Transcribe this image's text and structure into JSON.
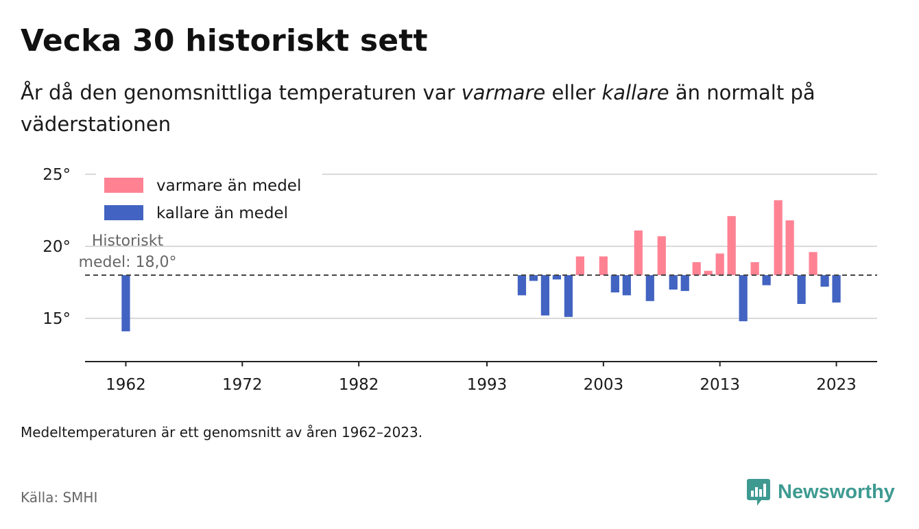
{
  "header": {
    "title": "Vecka 30 historiskt sett",
    "subtitle_pre": "År då den genomsnittliga temperaturen var ",
    "subtitle_warm": "varmare",
    "subtitle_mid": " eller ",
    "subtitle_cold": "kallare",
    "subtitle_post": " än normalt på väderstationen"
  },
  "footer": {
    "note": "Medeltemperaturen är ett genomsnitt av åren 1962–2023.",
    "source": "Källa: SMHI",
    "brand": "Newsworthy",
    "brand_icon": "newsworthy-logo-icon"
  },
  "colors": {
    "warm": "#ff8293",
    "cold": "#4263c1",
    "grid": "#d9d9d9",
    "axis": "#222222",
    "mean_line": "#444444",
    "brand": "#3e9a91"
  },
  "chart_data": {
    "type": "bar",
    "baseline": 18.0,
    "baseline_label": [
      "Historiskt",
      "medel: 18,0°"
    ],
    "ylim": [
      12,
      26
    ],
    "yticks": [
      15,
      20,
      25
    ],
    "ytick_labels": [
      "15°",
      "20°",
      "25°"
    ],
    "xlim": [
      1958.5,
      2026.5
    ],
    "xticks": [
      1962,
      1972,
      1982,
      1993,
      2003,
      2013,
      2023
    ],
    "xtick_labels": [
      "1962",
      "1972",
      "1982",
      "1993",
      "2003",
      "2013",
      "2023"
    ],
    "grid": true,
    "legend_position": "top-left",
    "series": [
      {
        "name": "varmare än medel",
        "key": "warm"
      },
      {
        "name": "kallare än medel",
        "key": "cold"
      }
    ],
    "points": [
      {
        "year": 1962,
        "value": 14.1
      },
      {
        "year": 1996,
        "value": 16.6
      },
      {
        "year": 1997,
        "value": 17.6
      },
      {
        "year": 1998,
        "value": 15.2
      },
      {
        "year": 1999,
        "value": 17.7
      },
      {
        "year": 2000,
        "value": 15.1
      },
      {
        "year": 2001,
        "value": 19.3
      },
      {
        "year": 2003,
        "value": 19.3
      },
      {
        "year": 2004,
        "value": 16.8
      },
      {
        "year": 2005,
        "value": 16.6
      },
      {
        "year": 2006,
        "value": 21.1
      },
      {
        "year": 2007,
        "value": 16.2
      },
      {
        "year": 2008,
        "value": 20.7
      },
      {
        "year": 2009,
        "value": 17.0
      },
      {
        "year": 2010,
        "value": 16.9
      },
      {
        "year": 2011,
        "value": 18.9
      },
      {
        "year": 2012,
        "value": 18.3
      },
      {
        "year": 2013,
        "value": 19.5
      },
      {
        "year": 2014,
        "value": 22.1
      },
      {
        "year": 2015,
        "value": 14.8
      },
      {
        "year": 2016,
        "value": 18.9
      },
      {
        "year": 2017,
        "value": 17.3
      },
      {
        "year": 2018,
        "value": 23.2
      },
      {
        "year": 2019,
        "value": 21.8
      },
      {
        "year": 2020,
        "value": 16.0
      },
      {
        "year": 2021,
        "value": 19.6
      },
      {
        "year": 2022,
        "value": 17.2
      },
      {
        "year": 2023,
        "value": 16.1
      }
    ]
  }
}
